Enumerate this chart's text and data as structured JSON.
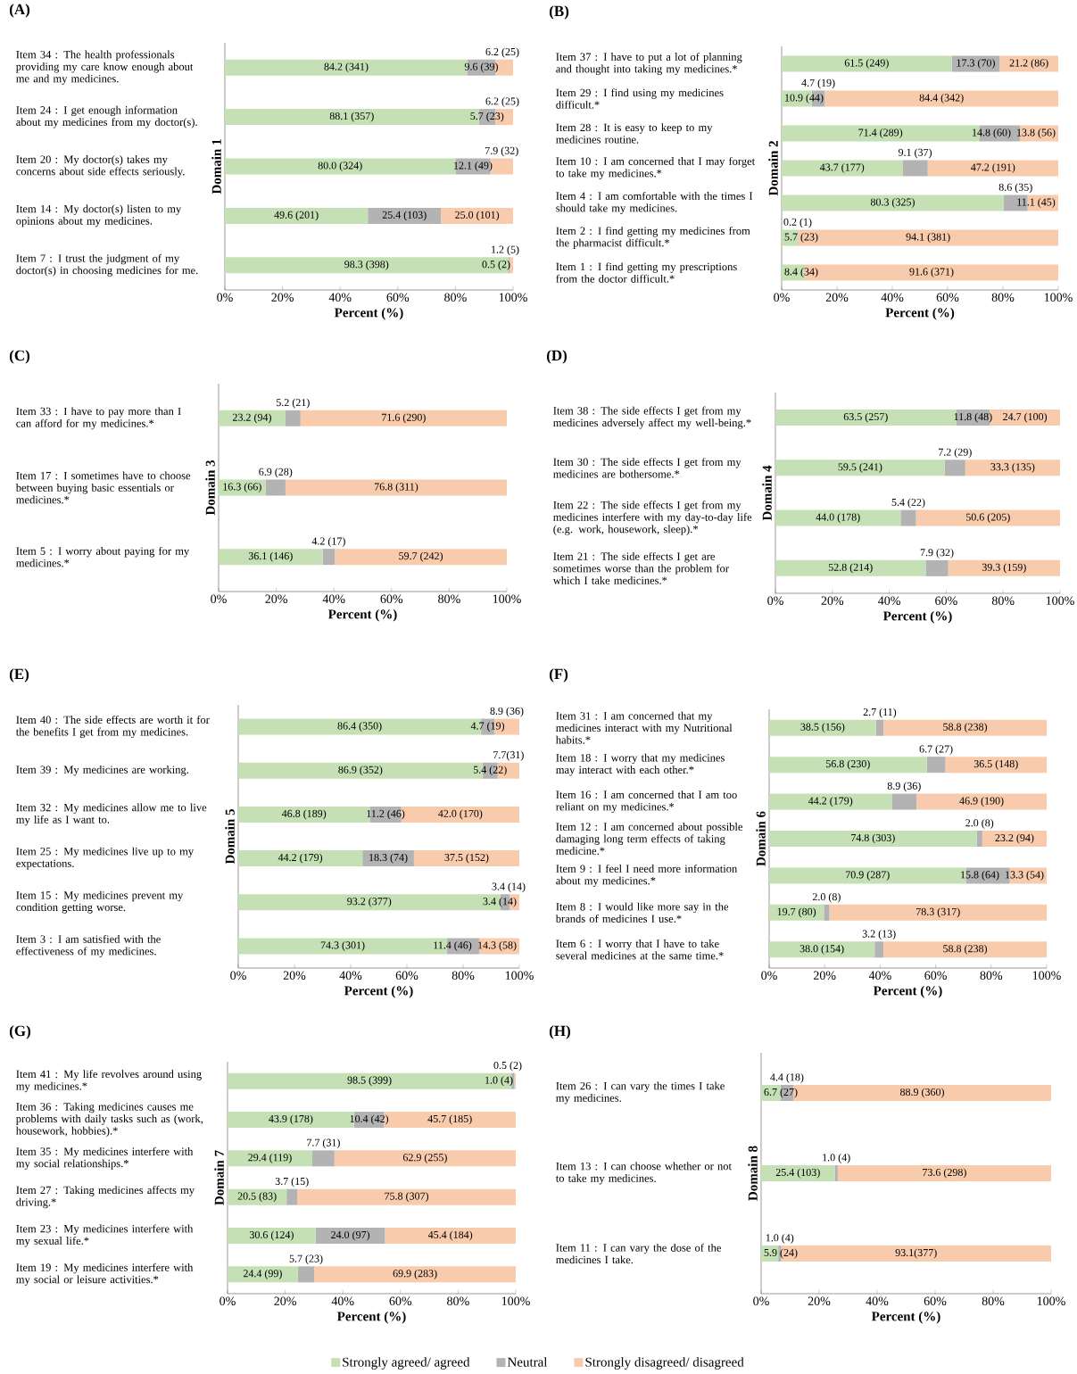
{
  "chart_data": [
    {
      "type": "bar",
      "orientation": "horizontal",
      "stacked": true,
      "title": "(A)",
      "xlabel": "Percent (%)",
      "ylabel": "Domain 1",
      "xlim": [
        0,
        100
      ],
      "xticks": [
        {
          "value": 0,
          "label": "0%"
        },
        {
          "value": 20,
          "label": "20%"
        },
        {
          "value": 40,
          "label": "40%"
        },
        {
          "value": 60,
          "label": "60%"
        },
        {
          "value": 80,
          "label": "80%"
        },
        {
          "value": 100,
          "label": "100%"
        }
      ],
      "categories": [
        "Item 34 : The health professionals providing my care know enough about me and my medicines.",
        "Item 24 : I get enough information about my medicines from my doctor(s).",
        "Item 20 : My doctor(s) takes my concerns about side effects seriously.",
        "Item 14 : My doctor(s) listen to my opinions about my medicines.",
        "Item 7 : I trust the judgment of my doctor(s) in choosing medicines for me."
      ],
      "series": [
        {
          "color": "#c5e0b4",
          "values": [
            84.2,
            88.1,
            80.0,
            49.6,
            98.3
          ],
          "value_labels": [
            "84.2 (341)",
            "88.1 (357)",
            "80.0 (324)",
            "49.6 (201)",
            "98.3 (398)"
          ]
        },
        {
          "color": "#b3b3b3",
          "values": [
            9.6,
            5.7,
            12.1,
            25.4,
            0.5
          ],
          "value_labels": [
            "9.6 (39)",
            "5.7 (23)",
            "12.1 (49)",
            "25.4 (103)",
            "0.5 (2)"
          ]
        },
        {
          "color": "#f8cbad",
          "values": [
            6.2,
            6.2,
            7.9,
            25.0,
            1.2
          ],
          "value_labels": [
            "6.2 (25)",
            "6.2 (25)",
            "7.9 (32)",
            "25.0 (101)",
            "1.2 (5)"
          ]
        }
      ]
    },
    {
      "type": "bar",
      "orientation": "horizontal",
      "stacked": true,
      "title": "(B)",
      "xlabel": "Percent (%)",
      "ylabel": "Domain 2",
      "xlim": [
        0,
        100
      ],
      "xticks": [
        {
          "value": 0,
          "label": "0%"
        },
        {
          "value": 20,
          "label": "20%"
        },
        {
          "value": 40,
          "label": "40%"
        },
        {
          "value": 60,
          "label": "60%"
        },
        {
          "value": 80,
          "label": "80%"
        },
        {
          "value": 100,
          "label": "100%"
        }
      ],
      "categories": [
        "Item 37 : I have to put a lot of planning and thought into taking my medicines.*",
        "Item 29 : I find using my medicines difficult.*",
        "Item 28 : It is easy to keep to my medicines routine.",
        "Item 10 : I am concerned that I may forget to take my medicines.*",
        "Item 4 : I am comfortable with the times I should take my medicines.",
        "Item 2 : I find getting my medicines from the pharmacist difficult.*",
        "Item 1 : I find getting my prescriptions from the doctor difficult.*"
      ],
      "series": [
        {
          "color": "#c5e0b4",
          "values": [
            61.5,
            10.9,
            71.4,
            43.7,
            80.3,
            5.7,
            8.4
          ],
          "value_labels": [
            "61.5 (249)",
            "10.9 (44)",
            "71.4 (289)",
            "43.7 (177)",
            "80.3 (325)",
            "5.7 (23)",
            "8.4 (34)"
          ]
        },
        {
          "color": "#b3b3b3",
          "values": [
            17.3,
            4.7,
            14.8,
            9.1,
            8.6,
            0.2,
            0
          ],
          "value_labels": [
            "17.3 (70)",
            "4.7 (19)",
            "14.8 (60)",
            "9.1 (37)",
            "8.6 (35)",
            "0.2 (1)",
            null
          ]
        },
        {
          "color": "#f8cbad",
          "values": [
            21.2,
            84.4,
            13.8,
            47.2,
            11.1,
            94.1,
            91.6
          ],
          "value_labels": [
            "21.2 (86)",
            "84.4 (342)",
            "13.8 (56)",
            "47.2 (191)",
            "11.1 (45)",
            "94.1 (381)",
            "91.6 (371)"
          ]
        }
      ]
    },
    {
      "type": "bar",
      "orientation": "horizontal",
      "stacked": true,
      "title": "(C)",
      "xlabel": "Percent (%)",
      "ylabel": "Domain 3",
      "xlim": [
        0,
        100
      ],
      "xticks": [
        {
          "value": 0,
          "label": "0%"
        },
        {
          "value": 20,
          "label": "20%"
        },
        {
          "value": 40,
          "label": "40%"
        },
        {
          "value": 60,
          "label": "60%"
        },
        {
          "value": 80,
          "label": "80%"
        },
        {
          "value": 100,
          "label": "100%"
        }
      ],
      "categories": [
        "Item 33 : I have to pay more than I can afford for my medicines.*",
        "Item 17 : I sometimes have to choose between buying basic essentials or medicines.*",
        "Item 5 : I worry about paying for my medicines.*"
      ],
      "series": [
        {
          "color": "#c5e0b4",
          "values": [
            23.2,
            16.3,
            36.1
          ],
          "value_labels": [
            "23.2 (94)",
            "16.3 (66)",
            "36.1 (146)"
          ]
        },
        {
          "color": "#b3b3b3",
          "values": [
            5.2,
            6.9,
            4.2
          ],
          "value_labels": [
            "5.2 (21)",
            "6.9 (28)",
            "4.2 (17)"
          ]
        },
        {
          "color": "#f8cbad",
          "values": [
            71.6,
            76.8,
            59.7
          ],
          "value_labels": [
            "71.6 (290)",
            "76.8 (311)",
            "59.7 (242)"
          ]
        }
      ]
    },
    {
      "type": "bar",
      "orientation": "horizontal",
      "stacked": true,
      "title": "(D)",
      "xlabel": "Percent (%)",
      "ylabel": "Domain 4",
      "xlim": [
        0,
        100
      ],
      "xticks": [
        {
          "value": 0,
          "label": "0%"
        },
        {
          "value": 20,
          "label": "20%"
        },
        {
          "value": 40,
          "label": "40%"
        },
        {
          "value": 60,
          "label": "60%"
        },
        {
          "value": 80,
          "label": "80%"
        },
        {
          "value": 100,
          "label": "100%"
        }
      ],
      "categories": [
        "Item 38 : The side effects I get from my medicines adversely affect my well-being.*",
        "Item 30 : The side effects I get from my medicines are bothersome.*",
        "Item 22 : The side effects I get from my medicines interfere with my day-to-day life (e.g. work, housework, sleep).*",
        "Item 21 : The side effects I get are sometimes worse than the problem for which I take medicines.*"
      ],
      "series": [
        {
          "color": "#c5e0b4",
          "values": [
            63.5,
            59.5,
            44.0,
            52.8
          ],
          "value_labels": [
            "63.5 (257)",
            "59.5 (241)",
            "44.0 (178)",
            "52.8 (214)"
          ]
        },
        {
          "color": "#b3b3b3",
          "values": [
            11.8,
            7.2,
            5.4,
            7.9
          ],
          "value_labels": [
            "11.8 (48)",
            "7.2 (29)",
            "5.4 (22)",
            "7.9 (32)"
          ]
        },
        {
          "color": "#f8cbad",
          "values": [
            24.7,
            33.3,
            50.6,
            39.3
          ],
          "value_labels": [
            "24.7 (100)",
            "33.3 (135)",
            "50.6 (205)",
            "39.3 (159)"
          ]
        }
      ]
    },
    {
      "type": "bar",
      "orientation": "horizontal",
      "stacked": true,
      "title": "(E)",
      "xlabel": "Percent (%)",
      "ylabel": "Domain 5",
      "xlim": [
        0,
        100
      ],
      "xticks": [
        {
          "value": 0,
          "label": "0%"
        },
        {
          "value": 20,
          "label": "20%"
        },
        {
          "value": 40,
          "label": "40%"
        },
        {
          "value": 60,
          "label": "60%"
        },
        {
          "value": 80,
          "label": "80%"
        },
        {
          "value": 100,
          "label": "100%"
        }
      ],
      "categories": [
        "Item 40 : The side effects are worth it for the benefits I get from my medicines.",
        "Item 39 : My medicines are working.",
        "Item 32 : My medicines allow me to live my life as I want to.",
        "Item 25 : My medicines live up to my expectations.",
        "Item 15 : My medicines prevent my condition getting worse.",
        "Item 3 : I am satisfied with the effectiveness of my medicines."
      ],
      "series": [
        {
          "color": "#c5e0b4",
          "values": [
            86.4,
            86.9,
            46.8,
            44.2,
            93.2,
            74.3
          ],
          "value_labels": [
            "86.4 (350)",
            "86.9 (352)",
            "46.8 (189)",
            "44.2 (179)",
            "93.2 (377)",
            "74.3 (301)"
          ]
        },
        {
          "color": "#b3b3b3",
          "values": [
            4.7,
            5.4,
            11.2,
            18.3,
            3.4,
            11.4
          ],
          "value_labels": [
            "4.7 (19)",
            "5.4 (22)",
            "11.2 (46)",
            "18.3 (74)",
            "3.4 (14)",
            "11.4 (46)"
          ]
        },
        {
          "color": "#f8cbad",
          "values": [
            8.9,
            7.7,
            42.0,
            37.5,
            3.4,
            14.3
          ],
          "value_labels": [
            "8.9 (36)",
            "7.7(31)",
            "42.0 (170)",
            "37.5 (152)",
            "3.4 (14)",
            "14.3 (58)"
          ]
        }
      ]
    },
    {
      "type": "bar",
      "orientation": "horizontal",
      "stacked": true,
      "title": "(F)",
      "xlabel": "Percent (%)",
      "ylabel": "Domain 6",
      "xlim": [
        0,
        100
      ],
      "xticks": [
        {
          "value": 0,
          "label": "0%"
        },
        {
          "value": 20,
          "label": "20%"
        },
        {
          "value": 40,
          "label": "40%"
        },
        {
          "value": 60,
          "label": "60%"
        },
        {
          "value": 80,
          "label": "80%"
        },
        {
          "value": 100,
          "label": "100%"
        }
      ],
      "categories": [
        "Item 31 : I am concerned that my medicines interact with my Nutritional habits.*",
        "Item 18 : I worry that my medicines may interact with each other.*",
        "Item 16 : I am concerned that I am too reliant on my medicines.*",
        "Item 12 : I am concerned about possible damaging long term effects of taking medicine.*",
        "Item 9 : I feel I need more information about my medicines.*",
        "Item 8 : I would like more say in the brands of medicines I use.*",
        "Item 6 : I worry that I have to take several medicines at the same time.*"
      ],
      "series": [
        {
          "color": "#c5e0b4",
          "values": [
            38.5,
            56.8,
            44.2,
            74.8,
            70.9,
            19.7,
            38.0
          ],
          "value_labels": [
            "38.5 (156)",
            "56.8 (230)",
            "44.2 (179)",
            "74.8 (303)",
            "70.9 (287)",
            "19.7 (80)",
            "38.0 (154)"
          ]
        },
        {
          "color": "#b3b3b3",
          "values": [
            2.7,
            6.7,
            8.9,
            2.0,
            15.8,
            2.0,
            3.2
          ],
          "value_labels": [
            "2.7 (11)",
            "6.7 (27)",
            "8.9 (36)",
            "2.0 (8)",
            "15.8 (64)",
            "2.0 (8)",
            "3.2 (13)"
          ]
        },
        {
          "color": "#f8cbad",
          "values": [
            58.8,
            36.5,
            46.9,
            23.2,
            13.3,
            78.3,
            58.8
          ],
          "value_labels": [
            "58.8 (238)",
            "36.5 (148)",
            "46.9 (190)",
            "23.2 (94)",
            "13.3 (54)",
            "78.3 (317)",
            "58.8 (238)"
          ]
        }
      ]
    },
    {
      "type": "bar",
      "orientation": "horizontal",
      "stacked": true,
      "title": "(G)",
      "xlabel": "Percent (%)",
      "ylabel": "Domain 7",
      "xlim": [
        0,
        100
      ],
      "xticks": [
        {
          "value": 0,
          "label": "0%"
        },
        {
          "value": 20,
          "label": "20%"
        },
        {
          "value": 40,
          "label": "40%"
        },
        {
          "value": 60,
          "label": "60%"
        },
        {
          "value": 80,
          "label": "80%"
        },
        {
          "value": 100,
          "label": "100%"
        }
      ],
      "categories": [
        "Item 41 : My life revolves around using my medicines.*",
        "Item 36 : Taking medicines causes me problems with daily tasks such as (work, housework, hobbies).*",
        "Item 35 : My medicines interfere with my social relationships.*",
        "Item 27 : Taking medicines affects my driving.*",
        "Item 23 : My medicines interfere with my sexual life.*",
        "Item 19 : My medicines interfere with my social or leisure activities.*"
      ],
      "series": [
        {
          "color": "#c5e0b4",
          "values": [
            98.5,
            43.9,
            29.4,
            20.5,
            30.6,
            24.4
          ],
          "value_labels": [
            "98.5 (399)",
            "43.9 (178)",
            "29.4 (119)",
            "20.5 (83)",
            "30.6 (124)",
            "24.4 (99)"
          ]
        },
        {
          "color": "#b3b3b3",
          "values": [
            1.0,
            10.4,
            7.7,
            3.7,
            24.0,
            5.7
          ],
          "value_labels": [
            "1.0 (4)",
            "10.4 (42)",
            "7.7 (31)",
            "3.7 (15)",
            "24.0 (97)",
            "5.7 (23)"
          ]
        },
        {
          "color": "#f8cbad",
          "values": [
            0.5,
            45.7,
            62.9,
            75.8,
            45.4,
            69.9
          ],
          "value_labels": [
            "0.5 (2)",
            "45.7 (185)",
            "62.9 (255)",
            "75.8 (307)",
            "45.4 (184)",
            "69.9 (283)"
          ]
        }
      ]
    },
    {
      "type": "bar",
      "orientation": "horizontal",
      "stacked": true,
      "title": "(H)",
      "xlabel": "Percent (%)",
      "ylabel": "Domain 8",
      "xlim": [
        0,
        100
      ],
      "xticks": [
        {
          "value": 0,
          "label": "0%"
        },
        {
          "value": 20,
          "label": "20%"
        },
        {
          "value": 40,
          "label": "40%"
        },
        {
          "value": 60,
          "label": "60%"
        },
        {
          "value": 80,
          "label": "80%"
        },
        {
          "value": 100,
          "label": "100%"
        }
      ],
      "legend": "bottom",
      "categories": [
        "Item 26 : I can vary the times I take my medicines.",
        "Item 13 : I can choose whether or not to take my medicines.",
        "Item 11 : I can vary the dose of the medicines I take."
      ],
      "series": [
        {
          "name": "Strongly agreed/ agreed",
          "color": "#c5e0b4",
          "values": [
            6.7,
            25.4,
            5.9
          ],
          "value_labels": [
            "6.7 (27)",
            "25.4 (103)",
            "5.9 (24)"
          ]
        },
        {
          "name": "Neutral",
          "color": "#b3b3b3",
          "values": [
            4.4,
            1.0,
            1.0
          ],
          "value_labels": [
            "4.4 (18)",
            "1.0 (4)",
            "1.0 (4)"
          ]
        },
        {
          "name": "Strongly disagreed/ disagreed",
          "color": "#f8cbad",
          "values": [
            88.9,
            73.6,
            93.1
          ],
          "value_labels": [
            "88.9 (360)",
            "73.6 (298)",
            "93.1(377)"
          ]
        }
      ]
    }
  ]
}
